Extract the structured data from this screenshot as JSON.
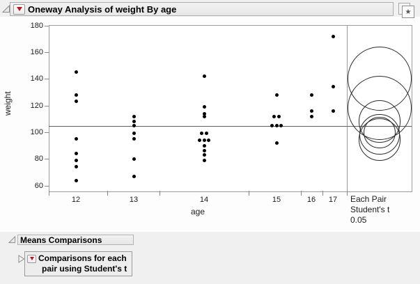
{
  "titlebar": {
    "title": "Oneway Analysis of weight By age"
  },
  "icons": {
    "disclosure_open": "open-triangle",
    "disclosure_closed": "right-triangle",
    "red_triangle_menu": "red-down-triangle",
    "popout_star": "★"
  },
  "colors": {
    "accent_red": "#c1121c",
    "header_bg": "#ececec",
    "window_bg": "#f0f0f0",
    "plot_bg": "#ffffff",
    "frame_gray": "#9c9c9c",
    "dot_black": "#000000"
  },
  "chart_data": {
    "type": "scatter",
    "title": "Oneway Analysis of weight By age",
    "xlabel": "age",
    "ylabel": "weight",
    "ylim": [
      56,
      180
    ],
    "yticks": [
      60,
      80,
      100,
      120,
      140,
      160,
      180
    ],
    "categories": [
      "12",
      "13",
      "14",
      "15",
      "16",
      "17"
    ],
    "x_axis_proportional_to_n": true,
    "grid": false,
    "groups": [
      {
        "age": "12",
        "n": 8,
        "weights": [
          145,
          128,
          123,
          95,
          84,
          79,
          74,
          64
        ]
      },
      {
        "age": "13",
        "n": 7,
        "weights": [
          112,
          108,
          105,
          99,
          95,
          80,
          67
        ]
      },
      {
        "age": "14",
        "n": 13,
        "weights": [
          142,
          119,
          114,
          112,
          99,
          99,
          94,
          94,
          94,
          90,
          86,
          83,
          79
        ]
      },
      {
        "age": "15",
        "n": 7,
        "weights": [
          128,
          112,
          112,
          105,
          105,
          105,
          92
        ]
      },
      {
        "age": "16",
        "n": 3,
        "weights": [
          128,
          116,
          112
        ]
      },
      {
        "age": "17",
        "n": 3,
        "weights": [
          172,
          134,
          116
        ]
      }
    ],
    "grand_mean_line": 104.8,
    "comparison_circles": {
      "method": "Each Pair, Student's t",
      "alpha": 0.05,
      "legend_lines": [
        "Each Pair",
        "Student's t",
        "0.05"
      ]
    }
  },
  "sections": {
    "means_comparisons": {
      "title": "Means Comparisons"
    },
    "comparisons_each_pair": {
      "line1": "Comparisons for each",
      "line2": "pair using Student's t"
    }
  }
}
